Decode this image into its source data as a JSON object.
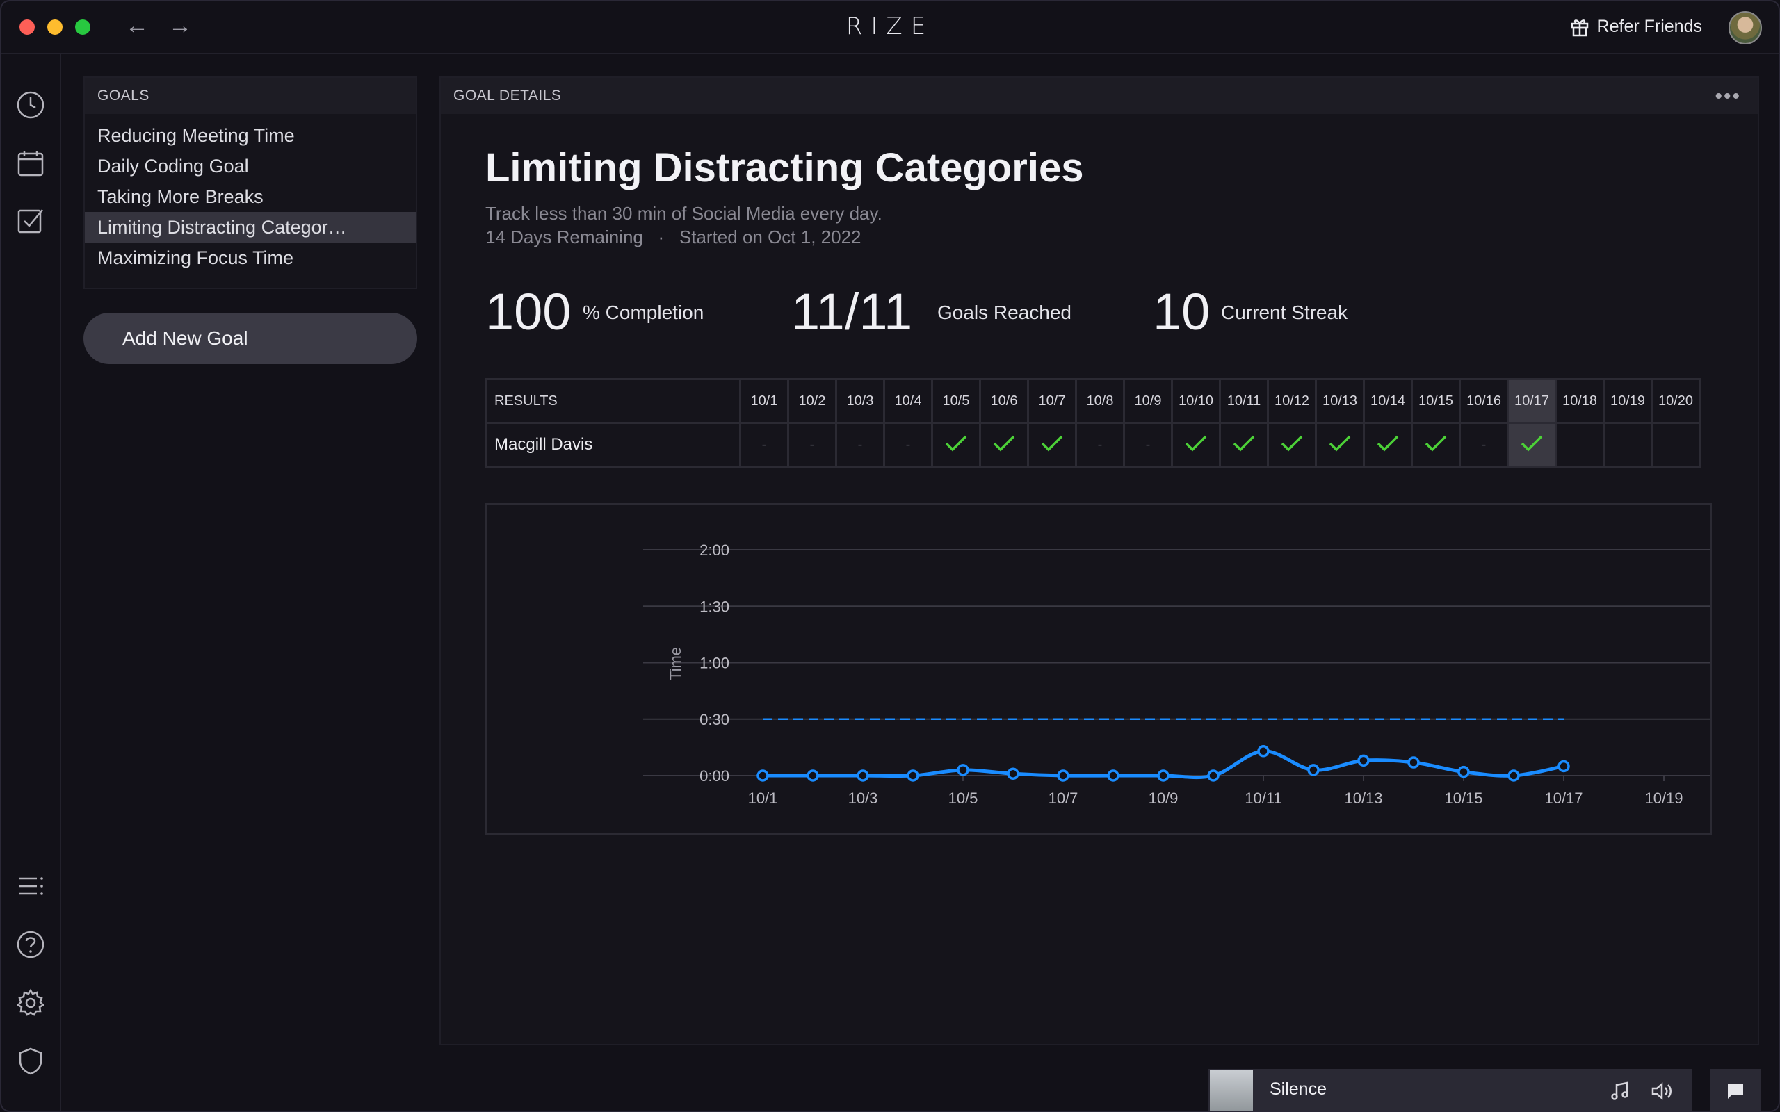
{
  "app": {
    "logo": "RIZE",
    "refer_label": "Refer Friends"
  },
  "goals_panel": {
    "header": "GOALS",
    "items": [
      {
        "label": "Reducing Meeting Time"
      },
      {
        "label": "Daily Coding Goal"
      },
      {
        "label": "Taking More Breaks"
      },
      {
        "label": "Limiting Distracting Categor…",
        "active": true
      },
      {
        "label": "Maximizing Focus Time"
      }
    ],
    "add_button": "Add New Goal"
  },
  "details": {
    "header": "GOAL DETAILS",
    "more_glyph": "•••",
    "title": "Limiting Distracting Categories",
    "description": "Track less than 30 min of Social Media every day.",
    "meta": "14 Days Remaining   ·   Started on Oct 1, 2022",
    "stats": [
      {
        "value": "100",
        "label": "% Completion"
      },
      {
        "value": "11/11",
        "label": "Goals Reached"
      },
      {
        "value": "10",
        "label": "Current Streak"
      }
    ]
  },
  "results": {
    "header": "RESULTS",
    "days": [
      "10/1",
      "10/2",
      "10/3",
      "10/4",
      "10/5",
      "10/6",
      "10/7",
      "10/8",
      "10/9",
      "10/10",
      "10/11",
      "10/12",
      "10/13",
      "10/14",
      "10/15",
      "10/16",
      "10/17",
      "10/18",
      "10/19",
      "10/20"
    ],
    "highlight_day": "10/17",
    "row_name": "Macgill Davis",
    "row": [
      "-",
      "-",
      "-",
      "-",
      "check",
      "check",
      "check",
      "-",
      "-",
      "check",
      "check",
      "check",
      "check",
      "check",
      "check",
      "-",
      "check",
      "",
      "",
      ""
    ]
  },
  "chart_data": {
    "type": "line",
    "ylabel": "Time",
    "y_ticks": [
      "2:00",
      "1:30",
      "1:00",
      "0:30",
      "0:00"
    ],
    "ylim_minutes": [
      0,
      120
    ],
    "target_minutes": 30,
    "x": [
      "10/1",
      "10/2",
      "10/3",
      "10/4",
      "10/5",
      "10/6",
      "10/7",
      "10/8",
      "10/9",
      "10/10",
      "10/11",
      "10/12",
      "10/13",
      "10/14",
      "10/15",
      "10/16",
      "10/17"
    ],
    "x_tick_labels": [
      "10/1",
      "10/3",
      "10/5",
      "10/7",
      "10/9",
      "10/11",
      "10/13",
      "10/15",
      "10/17",
      "10/19"
    ],
    "values_minutes": [
      0,
      0,
      0,
      0,
      3,
      1,
      0,
      0,
      0,
      0,
      13,
      3,
      8,
      7,
      2,
      0,
      5
    ],
    "colors": {
      "line": "#1a8cff",
      "target": "#1a8cff"
    }
  },
  "player": {
    "title": "Silence"
  },
  "colors": {
    "check": "#4cd137",
    "accent": "#1a8cff"
  }
}
